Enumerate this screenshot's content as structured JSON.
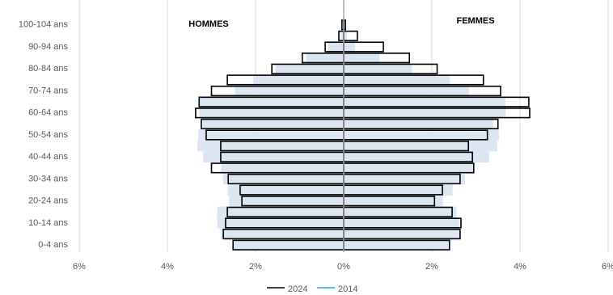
{
  "chart_data": {
    "type": "pyramid",
    "annotations": [
      "HOMMES",
      "FEMMES"
    ],
    "categories": [
      "0-4 ans",
      null,
      "10-14 ans",
      null,
      "20-24 ans",
      null,
      "30-34 ans",
      null,
      "40-44 ans",
      null,
      "50-54 ans",
      null,
      "60-64 ans",
      null,
      "70-74 ans",
      null,
      "80-84 ans",
      null,
      "90-94 ans",
      null,
      "100-104 ans"
    ],
    "series": [
      {
        "name": "2014",
        "color": "#dce6f2",
        "legend_color": "#4fc3e8",
        "men": [
          -2.52,
          -2.78,
          -2.87,
          -2.87,
          -2.6,
          -2.63,
          -2.74,
          -2.78,
          -3.19,
          -3.32,
          -3.3,
          -3.2,
          -3.28,
          -3.28,
          -2.47,
          -2.05,
          -1.55,
          -0.85,
          -0.35,
          -0.07,
          -0.02
        ],
        "women": [
          2.41,
          2.62,
          2.62,
          2.56,
          2.25,
          2.47,
          2.75,
          2.93,
          3.3,
          3.48,
          3.52,
          3.39,
          3.67,
          3.67,
          2.84,
          2.41,
          1.55,
          0.81,
          0.26,
          0.07,
          0.02
        ]
      },
      {
        "name": "2024",
        "color": "#000000",
        "legend_color": "#404040",
        "men": [
          -2.51,
          -2.73,
          -2.68,
          -2.64,
          -2.31,
          -2.35,
          -2.62,
          -3.0,
          -2.79,
          -2.79,
          -3.12,
          -3.23,
          -3.36,
          -3.28,
          -3.0,
          -2.64,
          -1.63,
          -0.94,
          -0.42,
          -0.11,
          -0.04
        ],
        "women": [
          2.4,
          2.64,
          2.66,
          2.46,
          2.06,
          2.24,
          2.64,
          2.95,
          2.92,
          2.83,
          3.26,
          3.5,
          4.22,
          4.2,
          3.56,
          3.17,
          2.12,
          1.49,
          0.9,
          0.31,
          0.04
        ]
      }
    ],
    "xlim": [
      -6,
      6
    ],
    "xticks": [
      {
        "value": -6,
        "label": "6%"
      },
      {
        "value": -4,
        "label": "4%"
      },
      {
        "value": -2,
        "label": "2%"
      },
      {
        "value": 0,
        "label": "0%"
      },
      {
        "value": 2,
        "label": "2%"
      },
      {
        "value": 4,
        "label": "4%"
      },
      {
        "value": 6,
        "label": "6%"
      }
    ],
    "grid": true
  }
}
